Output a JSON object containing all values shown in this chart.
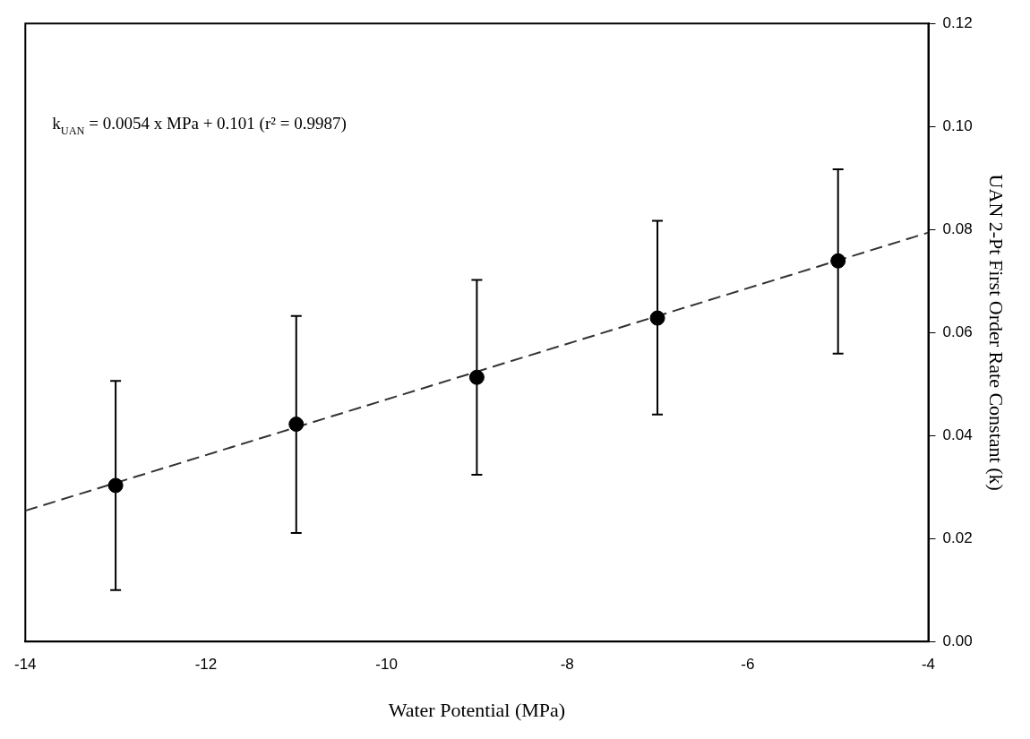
{
  "chart_data": {
    "type": "scatter",
    "xlabel": "Water Potential (MPa)",
    "ylabel": "UAN 2-Pt First Order Rate Constant (k)",
    "annotations": [
      "k$_{UAN}$ = 0.0054 x MPa + 0.101 (r² = 0.9987)"
    ],
    "series": [
      {
        "color": "#000000",
        "x": [
          -13,
          -11,
          -9,
          -7,
          -5
        ],
        "values": [
          0.0303,
          0.0422,
          0.0513,
          0.0628,
          0.0739
        ],
        "errors": [
          [
            0.01,
            0.0506
          ],
          [
            0.0211,
            0.0632
          ],
          [
            0.0324,
            0.0702
          ],
          [
            0.0441,
            0.0817
          ],
          [
            0.0559,
            0.0917
          ]
        ],
        "marker": "circle"
      },
      {
        "type": "line",
        "color": "#333333",
        "x": [
          -14,
          -4
        ],
        "values": [
          0.0254,
          0.0794
        ],
        "line_style": "dashed",
        "marker": "none"
      }
    ],
    "xlim": [
      -14,
      -4
    ],
    "xticks": [
      -14,
      -12,
      -10,
      -8,
      -6,
      -4
    ],
    "ylim": [
      0,
      0.12
    ],
    "yticks": [
      {
        "value": 0,
        "label": "0.00"
      },
      {
        "value": 0.02,
        "label": "0.02"
      },
      {
        "value": 0.04,
        "label": "0.04"
      },
      {
        "value": 0.06,
        "label": "0.06"
      },
      {
        "value": 0.08,
        "label": "0.08"
      },
      {
        "value": 0.1,
        "label": "0.10"
      },
      {
        "value": 0.12,
        "label": "0.12"
      }
    ],
    "grid": false,
    "legend": false
  }
}
